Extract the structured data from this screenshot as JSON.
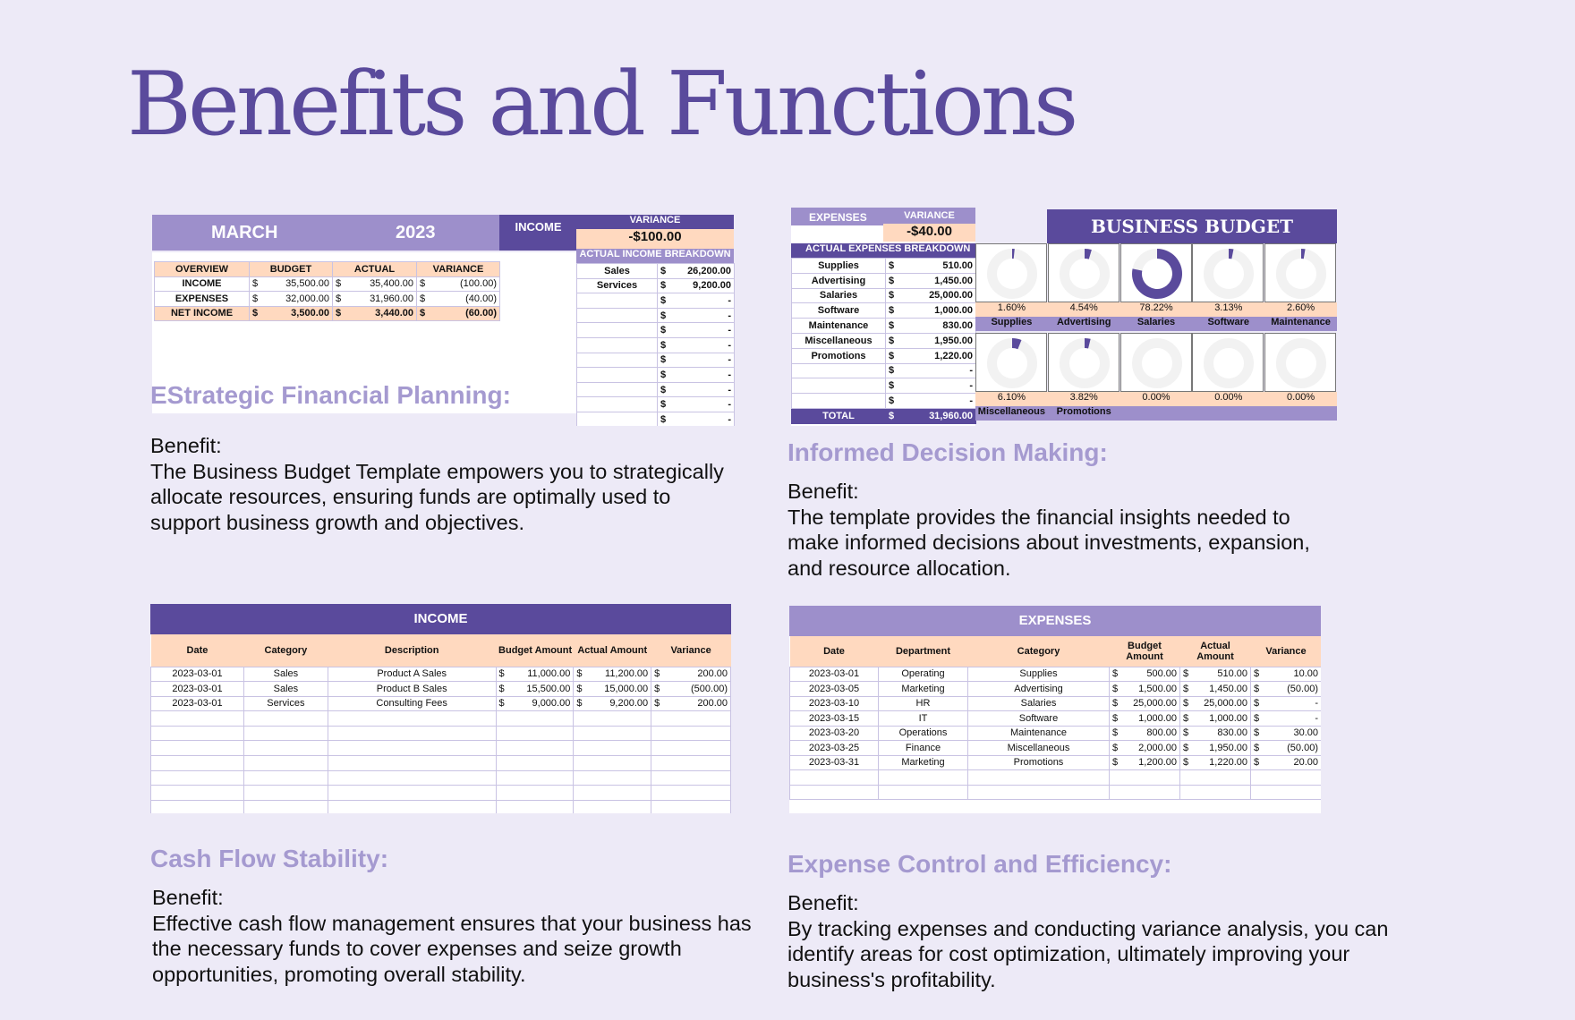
{
  "title": "Benefits and Functions",
  "sections": [
    {
      "heading": "EStrategic Financial Planning:",
      "benefit_label": "Benefit:",
      "text": "The Business Budget Template empowers you to strategically allocate resources, ensuring funds are optimally used to support business growth and objectives."
    },
    {
      "heading": "Informed Decision Making:",
      "benefit_label": "Benefit:",
      "text": "The template provides the financial insights needed to make informed decisions about investments, expansion, and resource allocation."
    },
    {
      "heading": "Cash Flow Stability:",
      "benefit_label": "Benefit:",
      "text": "Effective cash flow management ensures that your business has the necessary funds to cover expenses and seize growth opportunities, promoting overall stability."
    },
    {
      "heading": "Expense Control and Efficiency:",
      "benefit_label": "Benefit:",
      "text": "By tracking expenses and conducting variance analysis, you can identify areas for cost optimization, ultimately improving your business's profitability."
    }
  ],
  "sheet1": {
    "month": "MARCH",
    "year": "2023",
    "income_label": "INCOME",
    "variance_label": "VARIANCE",
    "variance_value": "-$100.00",
    "breakdown_label": "ACTUAL INCOME BREAKDOWN",
    "overview_headers": [
      "OVERVIEW",
      "BUDGET",
      "ACTUAL",
      "VARIANCE"
    ],
    "overview_rows": [
      {
        "label": "INCOME",
        "budget": "35,500.00",
        "actual": "35,400.00",
        "variance": "(100.00)"
      },
      {
        "label": "EXPENSES",
        "budget": "32,000.00",
        "actual": "31,960.00",
        "variance": "(40.00)"
      },
      {
        "label": "NET INCOME",
        "budget": "3,500.00",
        "actual": "3,440.00",
        "variance": "(60.00)"
      }
    ],
    "breakdown": [
      {
        "label": "Sales",
        "value": "26,200.00"
      },
      {
        "label": "Services",
        "value": "9,200.00"
      },
      {
        "label": "",
        "value": "-"
      },
      {
        "label": "",
        "value": "-"
      },
      {
        "label": "",
        "value": "-"
      },
      {
        "label": "",
        "value": "-"
      },
      {
        "label": "",
        "value": "-"
      },
      {
        "label": "",
        "value": "-"
      },
      {
        "label": "",
        "value": "-"
      },
      {
        "label": "",
        "value": "-"
      },
      {
        "label": "",
        "value": "-"
      }
    ],
    "currency": "$"
  },
  "sheet2": {
    "expenses_label": "EXPENSES",
    "variance_label": "VARIANCE",
    "variance_value": "-$40.00",
    "breakdown_label": "ACTUAL EXPENSES BREAKDOWN",
    "title": "BUSINESS BUDGET",
    "rows": [
      {
        "label": "Supplies",
        "value": "510.00"
      },
      {
        "label": "Advertising",
        "value": "1,450.00"
      },
      {
        "label": "Salaries",
        "value": "25,000.00"
      },
      {
        "label": "Software",
        "value": "1,000.00"
      },
      {
        "label": "Maintenance",
        "value": "830.00"
      },
      {
        "label": "Miscellaneous",
        "value": "1,950.00"
      },
      {
        "label": "Promotions",
        "value": "1,220.00"
      },
      {
        "label": "",
        "value": "-"
      },
      {
        "label": "",
        "value": "-"
      },
      {
        "label": "",
        "value": "-"
      }
    ],
    "total_label": "TOTAL",
    "total_value": "31,960.00",
    "donuts_top": [
      {
        "label": "Supplies",
        "pct_text": "1.60%",
        "fraction": 0.016
      },
      {
        "label": "Advertising",
        "pct_text": "4.54%",
        "fraction": 0.0454
      },
      {
        "label": "Salaries",
        "pct_text": "78.22%",
        "fraction": 0.7822
      },
      {
        "label": "Software",
        "pct_text": "3.13%",
        "fraction": 0.0313
      },
      {
        "label": "Maintenance",
        "pct_text": "2.60%",
        "fraction": 0.026
      }
    ],
    "donuts_bottom": [
      {
        "label": "Miscellaneous",
        "pct_text": "6.10%",
        "fraction": 0.061
      },
      {
        "label": "Promotions",
        "pct_text": "3.82%",
        "fraction": 0.0382
      },
      {
        "label": "",
        "pct_text": "0.00%",
        "fraction": 0
      },
      {
        "label": "",
        "pct_text": "0.00%",
        "fraction": 0
      },
      {
        "label": "",
        "pct_text": "0.00%",
        "fraction": 0
      }
    ],
    "colors": {
      "fill": "#5A4A9C",
      "track": "#F2F2F2"
    }
  },
  "sheet3": {
    "header": "INCOME",
    "columns": [
      "Date",
      "Category",
      "Description",
      "Budget Amount",
      "Actual Amount",
      "Variance"
    ],
    "rows": [
      {
        "date": "2023-03-01",
        "category": "Sales",
        "description": "Product A Sales",
        "budget": "11,000.00",
        "actual": "11,200.00",
        "variance": "200.00"
      },
      {
        "date": "2023-03-01",
        "category": "Sales",
        "description": "Product B Sales",
        "budget": "15,500.00",
        "actual": "15,000.00",
        "variance": "(500.00)"
      },
      {
        "date": "2023-03-01",
        "category": "Services",
        "description": "Consulting Fees",
        "budget": "9,000.00",
        "actual": "9,200.00",
        "variance": "200.00"
      }
    ],
    "empty_rows": 7
  },
  "sheet4": {
    "header": "EXPENSES",
    "columns": [
      "Date",
      "Department",
      "Category",
      "Budget Amount",
      "Actual Amount",
      "Variance"
    ],
    "rows": [
      {
        "date": "2023-03-01",
        "department": "Operating",
        "category": "Supplies",
        "budget": "500.00",
        "actual": "510.00",
        "variance": "10.00"
      },
      {
        "date": "2023-03-05",
        "department": "Marketing",
        "category": "Advertising",
        "budget": "1,500.00",
        "actual": "1,450.00",
        "variance": "(50.00)"
      },
      {
        "date": "2023-03-10",
        "department": "HR",
        "category": "Salaries",
        "budget": "25,000.00",
        "actual": "25,000.00",
        "variance": "-"
      },
      {
        "date": "2023-03-15",
        "department": "IT",
        "category": "Software",
        "budget": "1,000.00",
        "actual": "1,000.00",
        "variance": "-"
      },
      {
        "date": "2023-03-20",
        "department": "Operations",
        "category": "Maintenance",
        "budget": "800.00",
        "actual": "830.00",
        "variance": "30.00"
      },
      {
        "date": "2023-03-25",
        "department": "Finance",
        "category": "Miscellaneous",
        "budget": "2,000.00",
        "actual": "1,950.00",
        "variance": "(50.00)"
      },
      {
        "date": "2023-03-31",
        "department": "Marketing",
        "category": "Promotions",
        "budget": "1,200.00",
        "actual": "1,220.00",
        "variance": "20.00"
      }
    ],
    "empty_rows": 2
  }
}
